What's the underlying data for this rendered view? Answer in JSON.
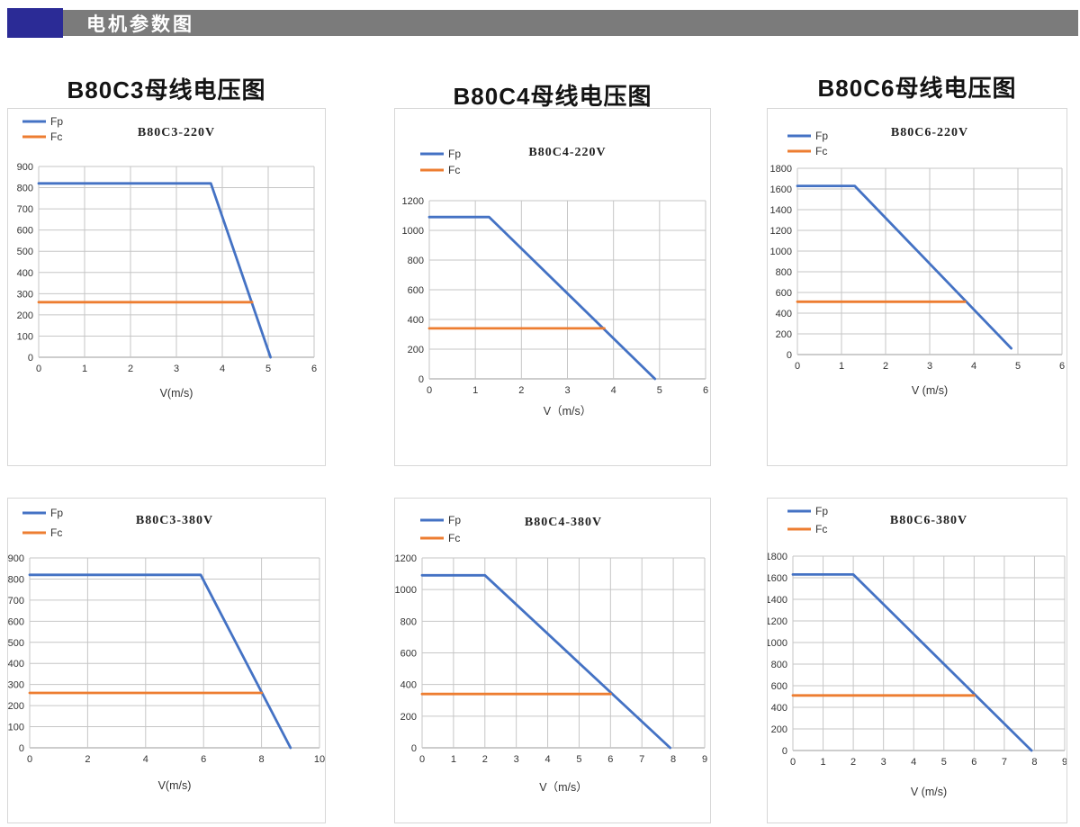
{
  "header": {
    "title": "电机参数图",
    "accent_color": "#2b2b96",
    "bar_color": "#7b7b7b"
  },
  "column_titles": [
    "B80C3母线电压图",
    "B80C4母线电压图",
    "B80C6母线电压图"
  ],
  "colors": {
    "fp": "#4472C4",
    "fc": "#ED7D31",
    "grid": "#c6c6c6",
    "axis": "#9b9b9b"
  },
  "chart_data": [
    {
      "type": "line",
      "title": "B80C3-220V",
      "xlabel": "V(m/s)",
      "xlim": [
        0,
        6
      ],
      "xstep": 1,
      "ylim": [
        0,
        900
      ],
      "ystep": 100,
      "grid": true,
      "legend_position": "top-left",
      "legend": [
        "Fp",
        "Fc"
      ],
      "series": [
        {
          "name": "Fp",
          "color": "#4472C4",
          "points": [
            [
              0,
              820
            ],
            [
              3.75,
              820
            ],
            [
              5.05,
              0
            ]
          ]
        },
        {
          "name": "Fc",
          "color": "#ED7D31",
          "points": [
            [
              0,
              260
            ],
            [
              4.65,
              260
            ]
          ]
        }
      ]
    },
    {
      "type": "line",
      "title": "B80C4-220V",
      "xlabel": "V（m/s）",
      "xlim": [
        0,
        6
      ],
      "xstep": 1,
      "ylim": [
        0,
        1200
      ],
      "ystep": 200,
      "grid": true,
      "legend_position": "top-left",
      "legend": [
        "Fp",
        "Fc"
      ],
      "series": [
        {
          "name": "Fp",
          "color": "#4472C4",
          "points": [
            [
              0,
              1090
            ],
            [
              1.3,
              1090
            ],
            [
              4.9,
              0
            ]
          ]
        },
        {
          "name": "Fc",
          "color": "#ED7D31",
          "points": [
            [
              0,
              340
            ],
            [
              3.8,
              340
            ]
          ]
        }
      ]
    },
    {
      "type": "line",
      "title": "B80C6-220V",
      "xlabel": "V (m/s)",
      "xlim": [
        0,
        6
      ],
      "xstep": 1,
      "ylim": [
        0,
        1800
      ],
      "ystep": 200,
      "grid": true,
      "legend_position": "top-left",
      "legend": [
        "Fp",
        "Fc"
      ],
      "series": [
        {
          "name": "Fp",
          "color": "#4472C4",
          "points": [
            [
              0,
              1630
            ],
            [
              1.3,
              1630
            ],
            [
              4.85,
              60
            ]
          ]
        },
        {
          "name": "Fc",
          "color": "#ED7D31",
          "points": [
            [
              0,
              510
            ],
            [
              3.8,
              510
            ]
          ]
        }
      ]
    },
    {
      "type": "line",
      "title": "B80C3-380V",
      "xlabel": "V(m/s)",
      "xlim": [
        0,
        10
      ],
      "xstep": 2,
      "ylim": [
        0,
        900
      ],
      "ystep": 100,
      "grid": true,
      "legend_position": "top-left",
      "legend": [
        "Fp",
        "Fc"
      ],
      "series": [
        {
          "name": "Fp",
          "color": "#4472C4",
          "points": [
            [
              0,
              820
            ],
            [
              5.9,
              820
            ],
            [
              9.0,
              0
            ]
          ]
        },
        {
          "name": "Fc",
          "color": "#ED7D31",
          "points": [
            [
              0,
              260
            ],
            [
              8.0,
              260
            ]
          ]
        }
      ]
    },
    {
      "type": "line",
      "title": "B80C4-380V",
      "xlabel": "V（m/s）",
      "xlim": [
        0,
        9
      ],
      "xstep": 1,
      "ylim": [
        0,
        1200
      ],
      "ystep": 200,
      "grid": true,
      "legend_position": "top-left",
      "legend": [
        "Fp",
        "Fc"
      ],
      "series": [
        {
          "name": "Fp",
          "color": "#4472C4",
          "points": [
            [
              0,
              1090
            ],
            [
              2.0,
              1090
            ],
            [
              7.9,
              0
            ]
          ]
        },
        {
          "name": "Fc",
          "color": "#ED7D31",
          "points": [
            [
              0,
              340
            ],
            [
              6.0,
              340
            ]
          ]
        }
      ]
    },
    {
      "type": "line",
      "title": "B80C6-380V",
      "xlabel": "V (m/s)",
      "xlim": [
        0,
        9
      ],
      "xstep": 1,
      "ylim": [
        0,
        1800
      ],
      "ystep": 200,
      "grid": true,
      "legend_position": "top-left",
      "legend": [
        "Fp",
        "Fc"
      ],
      "series": [
        {
          "name": "Fp",
          "color": "#4472C4",
          "points": [
            [
              0,
              1630
            ],
            [
              2.0,
              1630
            ],
            [
              7.9,
              0
            ]
          ]
        },
        {
          "name": "Fc",
          "color": "#ED7D31",
          "points": [
            [
              0,
              510
            ],
            [
              6.0,
              510
            ]
          ]
        }
      ]
    }
  ]
}
